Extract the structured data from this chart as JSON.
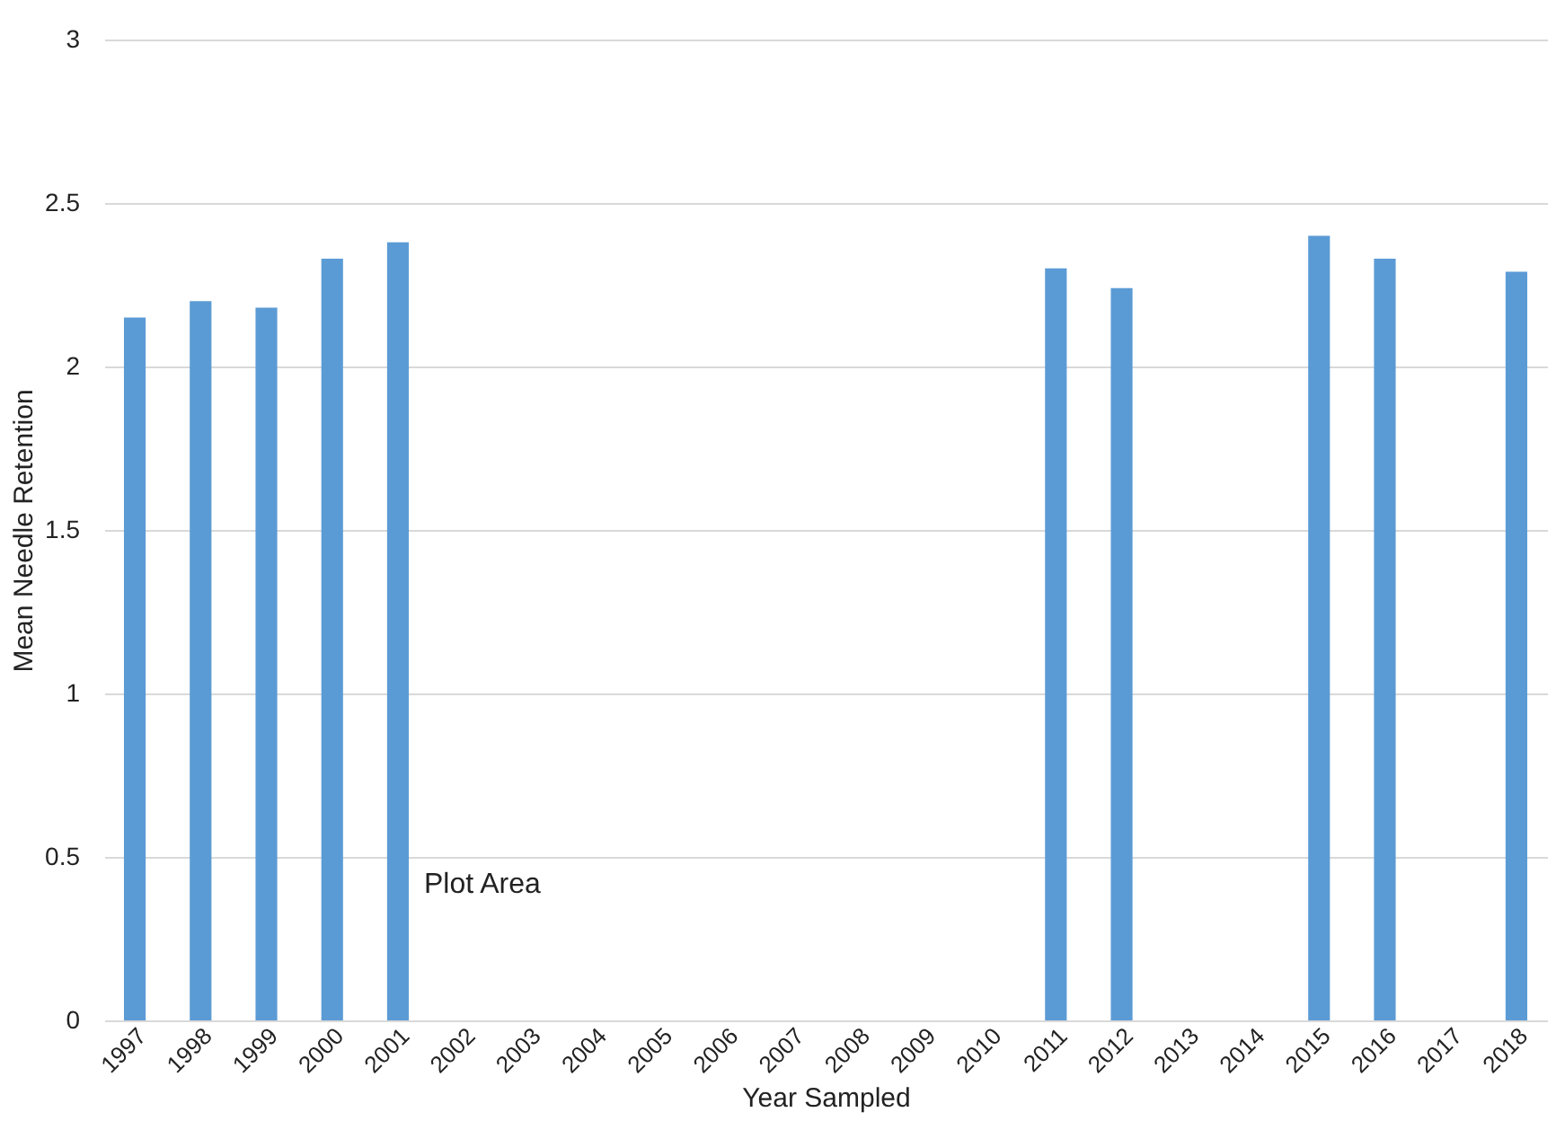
{
  "chart_data": {
    "type": "bar",
    "xlabel": "Year Sampled",
    "ylabel": "Mean Needle Retention",
    "categories": [
      "1997",
      "1998",
      "1999",
      "2000",
      "2001",
      "2002",
      "2003",
      "2004",
      "2005",
      "2006",
      "2007",
      "2008",
      "2009",
      "2010",
      "2011",
      "2012",
      "2013",
      "2014",
      "2015",
      "2016",
      "2017",
      "2018"
    ],
    "values": [
      2.15,
      2.2,
      2.18,
      2.33,
      2.38,
      null,
      null,
      null,
      null,
      null,
      null,
      null,
      null,
      null,
      2.3,
      2.24,
      null,
      null,
      2.4,
      2.33,
      null,
      2.29
    ],
    "color": "#5b9bd5",
    "ylim": [
      0,
      3
    ],
    "yticks": [
      0,
      0.5,
      1,
      1.5,
      2,
      2.5,
      3
    ],
    "grid": "y",
    "annotations": [
      "Plot Area"
    ]
  }
}
